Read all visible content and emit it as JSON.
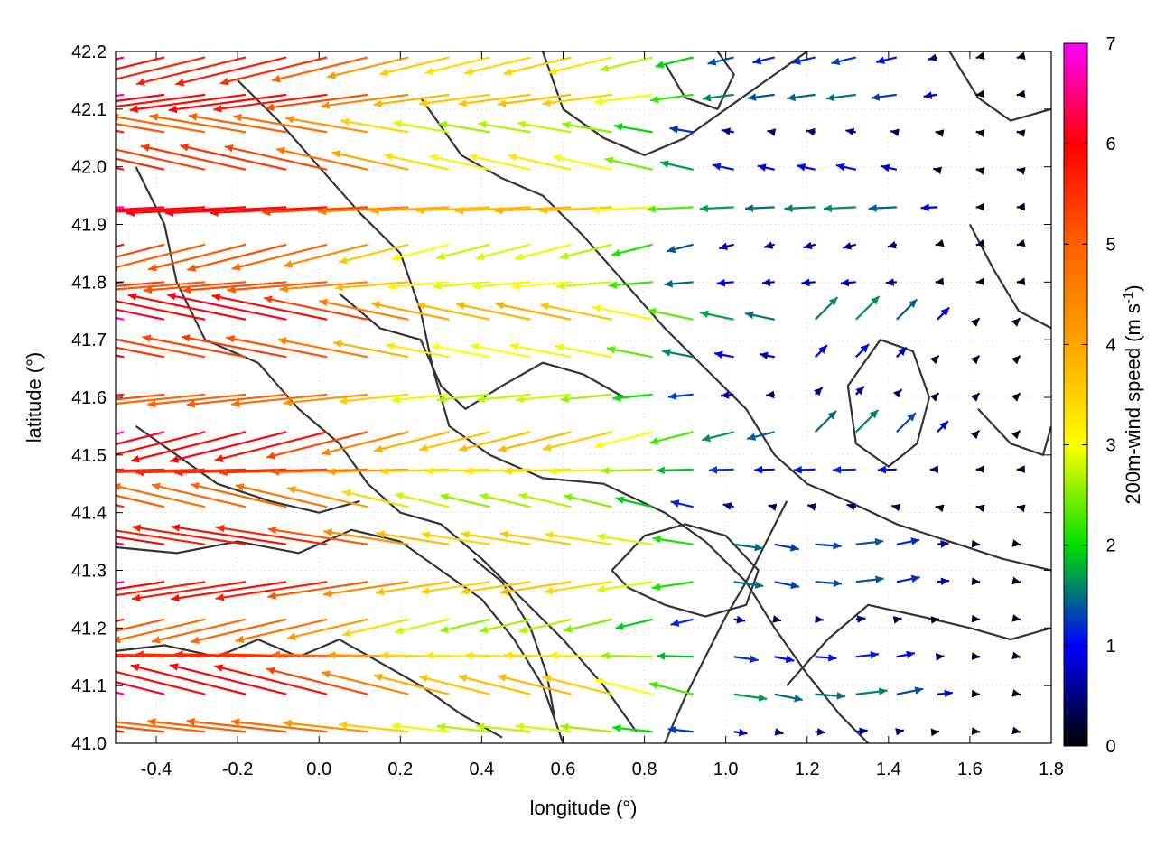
{
  "chart_data": {
    "type": "vector-field",
    "xlabel": "longitude (°)",
    "ylabel": "latitude (°)",
    "xlim": [
      -0.5,
      1.8
    ],
    "ylim": [
      41.0,
      42.2
    ],
    "x_ticks": [
      {
        "value": -0.4,
        "label": "-0.4"
      },
      {
        "value": -0.2,
        "label": "-0.2"
      },
      {
        "value": 0.0,
        "label": "0.0"
      },
      {
        "value": 0.2,
        "label": "0.2"
      },
      {
        "value": 0.4,
        "label": "0.4"
      },
      {
        "value": 0.6,
        "label": "0.6"
      },
      {
        "value": 0.8,
        "label": "0.8"
      },
      {
        "value": 1.0,
        "label": "1.0"
      },
      {
        "value": 1.2,
        "label": "1.2"
      },
      {
        "value": 1.4,
        "label": "1.4"
      },
      {
        "value": 1.6,
        "label": "1.6"
      },
      {
        "value": 1.8,
        "label": "1.8"
      }
    ],
    "y_ticks": [
      {
        "value": 41.0,
        "label": "41.0"
      },
      {
        "value": 41.1,
        "label": "41.1"
      },
      {
        "value": 41.2,
        "label": "41.2"
      },
      {
        "value": 41.3,
        "label": "41.3"
      },
      {
        "value": 41.4,
        "label": "41.4"
      },
      {
        "value": 41.5,
        "label": "41.5"
      },
      {
        "value": 41.6,
        "label": "41.6"
      },
      {
        "value": 41.7,
        "label": "41.7"
      },
      {
        "value": 41.8,
        "label": "41.8"
      },
      {
        "value": 41.9,
        "label": "41.9"
      },
      {
        "value": 42.0,
        "label": "42.0"
      },
      {
        "value": 42.1,
        "label": "42.1"
      },
      {
        "value": 42.2,
        "label": "42.2"
      }
    ],
    "grid": true,
    "colorbar": {
      "label_main": "200m-wind speed (m s",
      "label_sup": "-1",
      "label_close": ")",
      "range": [
        0,
        7
      ],
      "ticks": [
        {
          "value": 0,
          "label": "0"
        },
        {
          "value": 1,
          "label": "1"
        },
        {
          "value": 2,
          "label": "2"
        },
        {
          "value": 3,
          "label": "3"
        },
        {
          "value": 4,
          "label": "4"
        },
        {
          "value": 5,
          "label": "5"
        },
        {
          "value": 6,
          "label": "6"
        },
        {
          "value": 7,
          "label": "7"
        }
      ],
      "stops": [
        {
          "value": 0,
          "color": "#000000"
        },
        {
          "value": 1,
          "color": "#0000ff"
        },
        {
          "value": 2,
          "color": "#00e000"
        },
        {
          "value": 3,
          "color": "#ffff00"
        },
        {
          "value": 4,
          "color": "#ffa500"
        },
        {
          "value": 5,
          "color": "#ff6000"
        },
        {
          "value": 6,
          "color": "#ff0000"
        },
        {
          "value": 7,
          "color": "#ff00ff"
        }
      ]
    },
    "contour_color": "#333333",
    "contours": [
      [
        [
          -0.5,
          41.16
        ],
        [
          -0.38,
          41.17
        ],
        [
          -0.25,
          41.15
        ],
        [
          -0.15,
          41.18
        ],
        [
          -0.05,
          41.15
        ],
        [
          0.05,
          41.18
        ],
        [
          0.15,
          41.14
        ],
        [
          0.25,
          41.1
        ],
        [
          0.35,
          41.05
        ],
        [
          0.45,
          41.01
        ]
      ],
      [
        [
          -0.5,
          41.34
        ],
        [
          -0.35,
          41.33
        ],
        [
          -0.2,
          41.35
        ],
        [
          -0.05,
          41.33
        ],
        [
          0.08,
          41.37
        ],
        [
          0.2,
          41.35
        ],
        [
          0.3,
          41.3
        ],
        [
          0.4,
          41.25
        ],
        [
          0.48,
          41.18
        ],
        [
          0.55,
          41.1
        ],
        [
          0.6,
          41.0
        ]
      ],
      [
        [
          -0.45,
          42.0
        ],
        [
          -0.38,
          41.9
        ],
        [
          -0.35,
          41.8
        ],
        [
          -0.28,
          41.7
        ],
        [
          -0.15,
          41.66
        ],
        [
          -0.05,
          41.58
        ],
        [
          0.05,
          41.52
        ],
        [
          0.12,
          41.45
        ],
        [
          0.2,
          41.4
        ],
        [
          0.3,
          41.38
        ],
        [
          0.4,
          41.32
        ],
        [
          0.5,
          41.25
        ],
        [
          0.6,
          41.18
        ],
        [
          0.7,
          41.1
        ],
        [
          0.78,
          41.02
        ]
      ],
      [
        [
          -0.2,
          42.15
        ],
        [
          -0.1,
          42.08
        ],
        [
          0.0,
          42.0
        ],
        [
          0.1,
          41.92
        ],
        [
          0.2,
          41.85
        ],
        [
          0.25,
          41.75
        ],
        [
          0.28,
          41.65
        ],
        [
          0.32,
          41.55
        ],
        [
          0.42,
          41.5
        ],
        [
          0.55,
          41.46
        ],
        [
          0.7,
          41.45
        ],
        [
          0.85,
          41.4
        ],
        [
          0.95,
          41.35
        ],
        [
          1.05,
          41.28
        ],
        [
          1.12,
          41.2
        ],
        [
          1.2,
          41.12
        ],
        [
          1.28,
          41.05
        ],
        [
          1.35,
          41.0
        ]
      ],
      [
        [
          0.55,
          42.2
        ],
        [
          0.6,
          42.1
        ],
        [
          0.7,
          42.05
        ],
        [
          0.8,
          42.02
        ],
        [
          0.9,
          42.05
        ],
        [
          1.0,
          42.1
        ],
        [
          1.1,
          42.15
        ],
        [
          1.2,
          42.2
        ]
      ],
      [
        [
          0.25,
          42.12
        ],
        [
          0.35,
          42.02
        ],
        [
          0.45,
          41.98
        ],
        [
          0.55,
          41.95
        ],
        [
          0.65,
          41.88
        ],
        [
          0.75,
          41.8
        ],
        [
          0.85,
          41.72
        ],
        [
          0.95,
          41.65
        ],
        [
          1.05,
          41.58
        ],
        [
          1.12,
          41.5
        ],
        [
          1.2,
          41.45
        ],
        [
          1.3,
          41.42
        ],
        [
          1.42,
          41.38
        ],
        [
          1.55,
          41.35
        ],
        [
          1.68,
          41.32
        ],
        [
          1.8,
          41.3
        ]
      ],
      [
        [
          1.15,
          41.1
        ],
        [
          1.25,
          41.18
        ],
        [
          1.35,
          41.24
        ],
        [
          1.48,
          41.22
        ],
        [
          1.6,
          41.2
        ],
        [
          1.7,
          41.18
        ],
        [
          1.8,
          41.2
        ]
      ],
      [
        [
          0.85,
          41.0
        ],
        [
          0.9,
          41.08
        ],
        [
          0.95,
          41.15
        ],
        [
          1.0,
          41.22
        ],
        [
          1.05,
          41.28
        ],
        [
          1.1,
          41.35
        ],
        [
          1.15,
          41.42
        ]
      ],
      [
        [
          0.72,
          41.3
        ],
        [
          0.8,
          41.36
        ],
        [
          0.9,
          41.38
        ],
        [
          1.0,
          41.36
        ],
        [
          1.08,
          41.3
        ],
        [
          1.05,
          41.24
        ],
        [
          0.95,
          41.22
        ],
        [
          0.85,
          41.24
        ],
        [
          0.76,
          41.27
        ],
        [
          0.72,
          41.3
        ]
      ],
      [
        [
          1.3,
          41.62
        ],
        [
          1.38,
          41.7
        ],
        [
          1.46,
          41.68
        ],
        [
          1.5,
          41.6
        ],
        [
          1.47,
          41.52
        ],
        [
          1.4,
          41.48
        ],
        [
          1.32,
          41.52
        ],
        [
          1.3,
          41.62
        ]
      ],
      [
        [
          1.6,
          41.9
        ],
        [
          1.66,
          41.82
        ],
        [
          1.72,
          41.75
        ],
        [
          1.8,
          41.72
        ]
      ],
      [
        [
          1.55,
          42.2
        ],
        [
          1.62,
          42.12
        ],
        [
          1.7,
          42.08
        ],
        [
          1.8,
          42.1
        ]
      ],
      [
        [
          0.85,
          42.18
        ],
        [
          0.9,
          42.12
        ],
        [
          0.98,
          42.1
        ],
        [
          1.02,
          42.16
        ],
        [
          0.98,
          42.2
        ]
      ],
      [
        [
          -0.45,
          41.55
        ],
        [
          -0.35,
          41.5
        ],
        [
          -0.25,
          41.45
        ],
        [
          -0.12,
          41.42
        ],
        [
          0.0,
          41.4
        ],
        [
          0.1,
          41.42
        ]
      ],
      [
        [
          0.38,
          41.32
        ],
        [
          0.45,
          41.28
        ],
        [
          0.52,
          41.2
        ],
        [
          0.56,
          41.12
        ],
        [
          0.58,
          41.04
        ]
      ],
      [
        [
          1.62,
          41.58
        ],
        [
          1.7,
          41.52
        ],
        [
          1.78,
          41.5
        ],
        [
          1.8,
          41.55
        ]
      ],
      [
        [
          0.05,
          41.78
        ],
        [
          0.15,
          41.72
        ],
        [
          0.25,
          41.7
        ],
        [
          0.3,
          41.62
        ],
        [
          0.36,
          41.58
        ],
        [
          0.45,
          41.62
        ],
        [
          0.55,
          41.66
        ],
        [
          0.65,
          41.64
        ],
        [
          0.75,
          41.6
        ]
      ]
    ]
  }
}
